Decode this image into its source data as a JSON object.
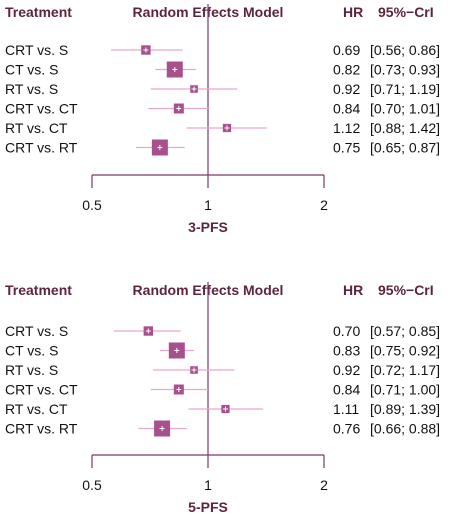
{
  "headers": {
    "treatment": "Treatment",
    "model": "Random Effects Model",
    "hr": "HR",
    "ci": "95%−CrI"
  },
  "colors": {
    "header": "#5c2440",
    "axis": "#7a3a6a",
    "box": "#a8508e",
    "ci_line": "#e6a8d0",
    "ref_line": "#7a3a6a"
  },
  "chart_data": [
    {
      "type": "forest",
      "xlabel": "3-PFS",
      "xscale": "log",
      "xlim": [
        0.5,
        2
      ],
      "ticks": [
        0.5,
        1,
        2
      ],
      "tick_labels": [
        "0.5",
        "1",
        "2"
      ],
      "reference": 1,
      "rows": [
        {
          "label": "CRT vs. S",
          "hr": 0.69,
          "lo": 0.56,
          "hi": 0.86,
          "hr_text": "0.69",
          "ci_text": "[0.56; 0.86]",
          "weight": 0.45
        },
        {
          "label": "CT vs. S",
          "hr": 0.82,
          "lo": 0.73,
          "hi": 0.93,
          "hr_text": "0.82",
          "ci_text": "[0.73; 0.93]",
          "weight": 1.0
        },
        {
          "label": "RT vs. S",
          "hr": 0.92,
          "lo": 0.71,
          "hi": 1.19,
          "hr_text": "0.92",
          "ci_text": "[0.71; 1.19]",
          "weight": 0.3
        },
        {
          "label": "CRT vs. CT",
          "hr": 0.84,
          "lo": 0.7,
          "hi": 1.01,
          "hr_text": "0.84",
          "ci_text": "[0.70; 1.01]",
          "weight": 0.5
        },
        {
          "label": "RT vs. CT",
          "hr": 1.12,
          "lo": 0.88,
          "hi": 1.42,
          "hr_text": "1.12",
          "ci_text": "[0.88; 1.42]",
          "weight": 0.35
        },
        {
          "label": "CRT vs. RT",
          "hr": 0.75,
          "lo": 0.65,
          "hi": 0.87,
          "hr_text": "0.75",
          "ci_text": "[0.65; 0.87]",
          "weight": 1.0
        }
      ]
    },
    {
      "type": "forest",
      "xlabel": "5-PFS",
      "xscale": "log",
      "xlim": [
        0.5,
        2
      ],
      "ticks": [
        0.5,
        1,
        2
      ],
      "tick_labels": [
        "0.5",
        "1",
        "2"
      ],
      "reference": 1,
      "rows": [
        {
          "label": "CRT vs. S",
          "hr": 0.7,
          "lo": 0.57,
          "hi": 0.85,
          "hr_text": "0.70",
          "ci_text": "[0.57; 0.85]",
          "weight": 0.45
        },
        {
          "label": "CT vs. S",
          "hr": 0.83,
          "lo": 0.75,
          "hi": 0.92,
          "hr_text": "0.83",
          "ci_text": "[0.75; 0.92]",
          "weight": 1.0
        },
        {
          "label": "RT vs. S",
          "hr": 0.92,
          "lo": 0.72,
          "hi": 1.17,
          "hr_text": "0.92",
          "ci_text": "[0.72; 1.17]",
          "weight": 0.3
        },
        {
          "label": "CRT vs. CT",
          "hr": 0.84,
          "lo": 0.71,
          "hi": 1.0,
          "hr_text": "0.84",
          "ci_text": "[0.71; 1.00]",
          "weight": 0.5
        },
        {
          "label": "RT vs. CT",
          "hr": 1.11,
          "lo": 0.89,
          "hi": 1.39,
          "hr_text": "1.11",
          "ci_text": "[0.89; 1.39]",
          "weight": 0.35
        },
        {
          "label": "CRT vs. RT",
          "hr": 0.76,
          "lo": 0.66,
          "hi": 0.88,
          "hr_text": "0.76",
          "ci_text": "[0.66; 0.88]",
          "weight": 1.0
        }
      ]
    }
  ]
}
